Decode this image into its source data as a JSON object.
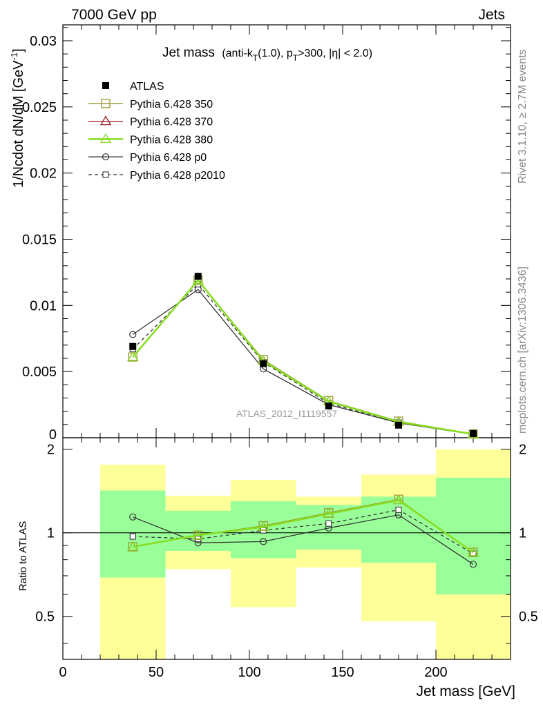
{
  "header": {
    "left": "7000 GeV pp",
    "right": "Jets"
  },
  "side_texts": {
    "rivet": "Rivet 3.1.10, ≥ 2.7M events",
    "mcplots": "mcplots.cern.ch [arXiv:1306.3436]"
  },
  "watermark": "ATLAS_2012_I1119557",
  "colors": {
    "ATLAS": "#000000",
    "p350": "#999933",
    "p370": "#a0151c",
    "p380": "#88dd22",
    "p0": "#333333",
    "p2010": "#333333",
    "band_inner": "#99ff99",
    "band_outer": "#ffff99"
  },
  "chart_data": [
    {
      "type": "line",
      "title": "Jet mass",
      "title_cuts": {
        "pre": "(anti-k",
        "sub1": "T",
        "mid1": "(1.0), p",
        "sub2": "T",
        "post": ">300, |η| < 2.0)"
      },
      "ylabel": "1/Ncdot dN/dM [GeV",
      "ylabel_sup": "-1",
      "ylabel_close": "]",
      "xlim": [
        0,
        240
      ],
      "ylim": [
        0,
        0.0312
      ],
      "yticks": [
        0.005,
        0.01,
        0.015,
        0.02,
        0.025,
        0.03
      ],
      "ytick_labels": [
        "0.005",
        "0.01",
        "0.015",
        "0.02",
        "0.025",
        "0.03"
      ],
      "y_zero_label": "0",
      "x": [
        37.5,
        72.5,
        107.5,
        142.5,
        180,
        220
      ],
      "bin_edges": [
        20,
        55,
        90,
        125,
        160,
        200,
        240
      ],
      "legend_position": "top-left",
      "series": [
        {
          "name": "ATLAS",
          "key": "ATLAS",
          "marker": "filled-square",
          "line": "none",
          "values": [
            0.0069,
            0.0122,
            0.0056,
            0.0024,
            0.00095,
            0.00032
          ]
        },
        {
          "name": "Pythia 6.428 350",
          "key": "p350",
          "marker": "open-square",
          "line": "solid",
          "values": [
            0.0061,
            0.0119,
            0.0059,
            0.0028,
            0.00125,
            0.00028
          ]
        },
        {
          "name": "Pythia 6.428 370",
          "key": "p370",
          "marker": "open-triangle",
          "line": "solid",
          "values": [
            0.0061,
            0.0119,
            0.0058,
            0.00275,
            0.0012,
            0.00027
          ]
        },
        {
          "name": "Pythia 6.428 380",
          "key": "p380",
          "marker": "open-triangle",
          "line": "solid-thick",
          "values": [
            0.0061,
            0.0119,
            0.0058,
            0.00275,
            0.0012,
            0.00027
          ]
        },
        {
          "name": "Pythia 6.428 p0",
          "key": "p0",
          "marker": "open-circle",
          "line": "solid",
          "values": [
            0.0078,
            0.0112,
            0.0052,
            0.0025,
            0.00112,
            0.00025
          ]
        },
        {
          "name": "Pythia 6.428 p2010",
          "key": "p2010",
          "marker": "open-small-square",
          "line": "dashed",
          "values": [
            0.0067,
            0.0116,
            0.0057,
            0.0026,
            0.00115,
            0.00027
          ]
        }
      ]
    },
    {
      "type": "line",
      "ylabel": "Ratio to ATLAS",
      "xlabel": "Jet mass [GeV]",
      "xlim": [
        0,
        240
      ],
      "ylim": [
        0.35,
        2.2
      ],
      "log_y": true,
      "yticks": [
        0.5,
        1,
        2
      ],
      "ytick_labels": [
        "0.5",
        "1",
        "2"
      ],
      "xticks": [
        0,
        50,
        100,
        150,
        200
      ],
      "xtick_labels": [
        "0",
        "50",
        "100",
        "150",
        "200"
      ],
      "x": [
        37.5,
        72.5,
        107.5,
        142.5,
        180,
        220
      ],
      "bands": {
        "inner_low": [
          0.69,
          0.86,
          0.81,
          0.87,
          0.78,
          0.6
        ],
        "inner_high": [
          1.42,
          1.2,
          1.3,
          1.26,
          1.35,
          1.58
        ],
        "outer_low": [
          0.34,
          0.74,
          0.54,
          0.75,
          0.48,
          0.34
        ],
        "outer_high": [
          1.76,
          1.36,
          1.55,
          1.35,
          1.62,
          2.0
        ]
      },
      "series": [
        {
          "name": "Pythia 6.428 350",
          "key": "p350",
          "values": [
            0.89,
            0.98,
            1.06,
            1.18,
            1.32,
            0.85
          ]
        },
        {
          "name": "Pythia 6.428 370",
          "key": "p370",
          "values": [
            0.89,
            0.98,
            1.05,
            1.17,
            1.31,
            0.85
          ]
        },
        {
          "name": "Pythia 6.428 380",
          "key": "p380",
          "values": [
            0.89,
            0.98,
            1.05,
            1.17,
            1.31,
            0.85
          ]
        },
        {
          "name": "Pythia 6.428 p0",
          "key": "p0",
          "values": [
            1.14,
            0.92,
            0.93,
            1.04,
            1.16,
            0.77
          ]
        },
        {
          "name": "Pythia 6.428 p2010",
          "key": "p2010",
          "values": [
            0.97,
            0.95,
            1.02,
            1.08,
            1.21,
            0.84
          ]
        }
      ]
    }
  ]
}
